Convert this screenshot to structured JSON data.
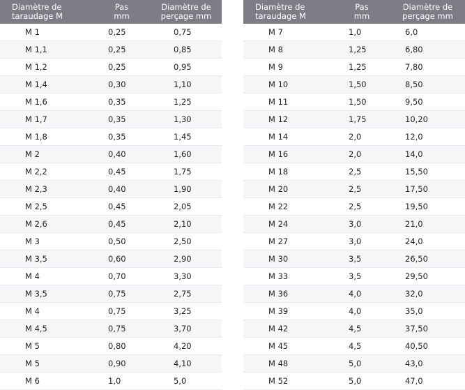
{
  "headers": {
    "diam_line1": "Diamètre de",
    "diam_line2": "taraudage M",
    "pas_line1": "Pas",
    "pas_line2": "mm",
    "perc_line1": "Diamètre de",
    "perc_line2": "perçage mm"
  },
  "left_rows": [
    [
      "M 1",
      "0,25",
      "0,75"
    ],
    [
      "M 1,1",
      "0,25",
      "0,85"
    ],
    [
      "M 1,2",
      "0,25",
      "0,95"
    ],
    [
      "M 1,4",
      "0,30",
      "1,10"
    ],
    [
      "M 1,6",
      "0,35",
      "1,25"
    ],
    [
      "M 1,7",
      "0,35",
      "1,30"
    ],
    [
      "M 1,8",
      "0,35",
      "1,45"
    ],
    [
      "M 2",
      "0,40",
      "1,60"
    ],
    [
      "M 2,2",
      "0,45",
      "1,75"
    ],
    [
      "M 2,3",
      "0,40",
      "1,90"
    ],
    [
      "M 2,5",
      "0,45",
      "2,05"
    ],
    [
      "M 2,6",
      "0,45",
      "2,10"
    ],
    [
      "M 3",
      "0,50",
      "2,50"
    ],
    [
      "M 3,5",
      "0,60",
      "2,90"
    ],
    [
      "M 4",
      "0,70",
      "3,30"
    ],
    [
      "M 3,5",
      "0,75",
      "2,75"
    ],
    [
      "M 4",
      "0,75",
      "3,25"
    ],
    [
      "M 4,5",
      "0,75",
      "3,70"
    ],
    [
      "M 5",
      "0,80",
      "4,20"
    ],
    [
      "M 5",
      "0,90",
      "4,10"
    ],
    [
      "M 6",
      "1,0",
      "5,0"
    ]
  ],
  "right_rows": [
    [
      "M 7",
      "1,0",
      "6,0"
    ],
    [
      "M 8",
      "1,25",
      "6,80"
    ],
    [
      "M 9",
      "1,25",
      "7,80"
    ],
    [
      "M 10",
      "1,50",
      "8,50"
    ],
    [
      "M 11",
      "1,50",
      "9,50"
    ],
    [
      "M 12",
      "1,75",
      "10,20"
    ],
    [
      "M 14",
      "2,0",
      "12,0"
    ],
    [
      "M 16",
      "2,0",
      "14,0"
    ],
    [
      "M 18",
      "2,5",
      "15,50"
    ],
    [
      "M 20",
      "2,5",
      "17,50"
    ],
    [
      "M 22",
      "2,5",
      "19,50"
    ],
    [
      "M 24",
      "3,0",
      "21,0"
    ],
    [
      "M 27",
      "3,0",
      "24,0"
    ],
    [
      "M 30",
      "3,5",
      "26,50"
    ],
    [
      "M 33",
      "3,5",
      "29,50"
    ],
    [
      "M 36",
      "4,0",
      "32,0"
    ],
    [
      "M 39",
      "4,0",
      "35,0"
    ],
    [
      "M 42",
      "4,5",
      "37,50"
    ],
    [
      "M 45",
      "4,5",
      "40,50"
    ],
    [
      "M 48",
      "5,0",
      "43,0"
    ],
    [
      "M 52",
      "5,0",
      "47,0"
    ]
  ]
}
